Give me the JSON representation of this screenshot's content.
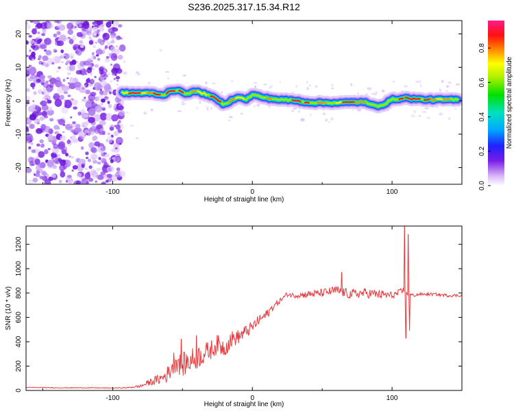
{
  "title": "S236.2025.317.15.34.R12",
  "chart_data": [
    {
      "type": "heatmap",
      "name": "spectrogram",
      "xlabel": "Height of straight line (km)",
      "ylabel": "Frequency (Hz)",
      "xlim": [
        -162,
        150
      ],
      "ylim": [
        -25,
        24
      ],
      "xticks": [
        -100,
        0,
        100
      ],
      "yticks": [
        -20,
        -10,
        0,
        10,
        20
      ],
      "noise_region_x": [
        -162,
        -93
      ],
      "ridge": {
        "x": [
          -93,
          -80,
          -70,
          -64,
          -60,
          -55,
          -48,
          -40,
          -30,
          -25,
          -20,
          -15,
          -10,
          -5,
          0,
          10,
          20,
          30,
          40,
          50,
          60,
          70,
          80,
          85,
          90,
          95,
          100,
          105,
          110,
          120,
          130,
          140,
          148
        ],
        "y": [
          2.3,
          2.3,
          2.2,
          1.5,
          2.8,
          3.2,
          2.2,
          2.8,
          1.5,
          0.2,
          -1.2,
          0.2,
          1.3,
          0.2,
          1.8,
          0.8,
          0.3,
          0.1,
          -0.5,
          -0.6,
          -0.6,
          -0.5,
          -0.3,
          -1.3,
          -1.5,
          -0.9,
          0.4,
          0.6,
          0.8,
          0.4,
          0.3,
          0.3,
          0.3
        ]
      },
      "colorbar": {
        "label": "Normalized spectral amplitude",
        "range": [
          0,
          0.96
        ],
        "ticks": [
          "0.0",
          "0.2",
          "0.4",
          "0.6",
          "0.8"
        ]
      }
    },
    {
      "type": "line",
      "name": "snr",
      "xlabel": "Height of straight line (km)",
      "ylabel": "SNR (10 * v/v)",
      "xlim": [
        -162,
        150
      ],
      "ylim": [
        0,
        1350
      ],
      "xticks": [
        -100,
        0,
        100
      ],
      "yticks": [
        0,
        200,
        400,
        600,
        800,
        1000,
        1200
      ],
      "series": [
        {
          "name": "SNR",
          "color": "#e8383c",
          "x": [
            -162,
            -140,
            -120,
            -100,
            -90,
            -80,
            -75,
            -70,
            -65,
            -60,
            -55,
            -50,
            -45,
            -40,
            -35,
            -30,
            -25,
            -20,
            -15,
            -10,
            -5,
            0,
            5,
            10,
            15,
            20,
            25,
            30,
            40,
            50,
            60,
            70,
            80,
            90,
            100,
            105,
            108,
            110,
            112,
            115,
            120,
            130,
            140,
            150
          ],
          "values": [
            25,
            22,
            22,
            20,
            22,
            35,
            60,
            80,
            100,
            140,
            260,
            210,
            240,
            270,
            300,
            330,
            380,
            350,
            420,
            440,
            480,
            520,
            580,
            620,
            690,
            740,
            790,
            780,
            790,
            800,
            820,
            790,
            800,
            790,
            780,
            800,
            820,
            800,
            790,
            780,
            790,
            790,
            780,
            780
          ],
          "noise": [
            3,
            3,
            3,
            3,
            4,
            12,
            25,
            35,
            50,
            70,
            110,
            100,
            100,
            100,
            90,
            80,
            80,
            80,
            70,
            60,
            55,
            50,
            45,
            40,
            30,
            20,
            20,
            20,
            30,
            35,
            40,
            40,
            40,
            40,
            30,
            30,
            30,
            20,
            15,
            15,
            12,
            12,
            12,
            12
          ],
          "spikes": [
            {
              "x": 109,
              "y": 1350
            },
            {
              "x": 110,
              "y": 430
            },
            {
              "x": 111.5,
              "y": 1280
            },
            {
              "x": 112.5,
              "y": 490
            },
            {
              "x": 64,
              "y": 970
            },
            {
              "x": -51,
              "y": 420
            },
            {
              "x": -40,
              "y": 450
            }
          ]
        }
      ]
    }
  ]
}
